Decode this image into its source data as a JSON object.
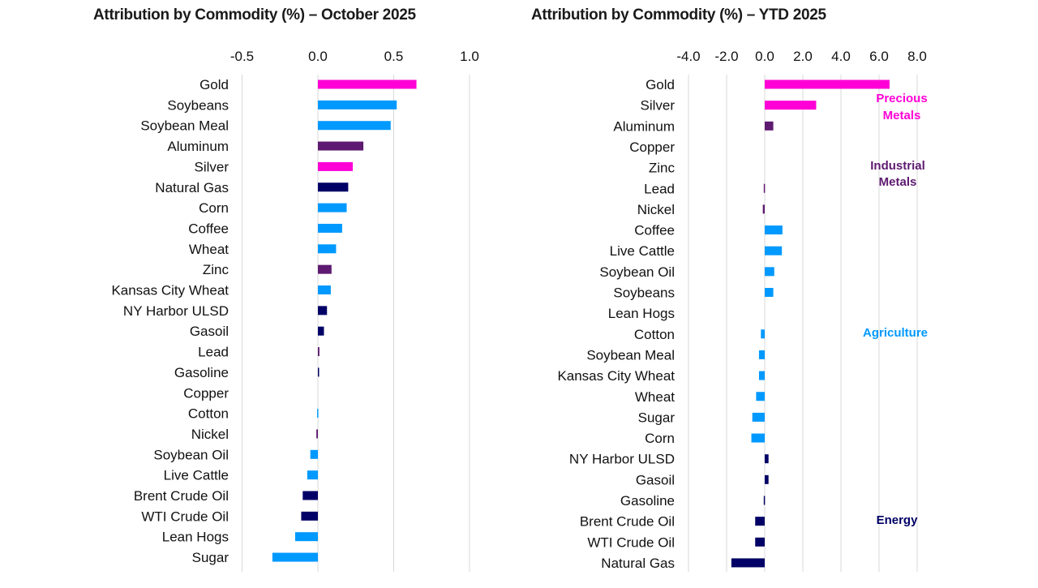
{
  "colors": {
    "Precious Metals": "#ff00d6",
    "Industrial Metals": "#5e1a70",
    "Agriculture": "#0099ff",
    "Energy": "#000066"
  },
  "chart_data": [
    {
      "type": "bar",
      "orientation": "horizontal",
      "title": "Attribution by Commodity (%) – October 2025",
      "xlim": [
        -0.5,
        1.0
      ],
      "ticks": [
        "-0.5",
        "0.0",
        "0.5",
        "1.0"
      ],
      "tick_values": [
        -0.5,
        0.0,
        0.5,
        1.0
      ],
      "grid": true,
      "categories": [
        "Gold",
        "Soybeans",
        "Soybean Meal",
        "Aluminum",
        "Silver",
        "Natural Gas",
        "Corn",
        "Coffee",
        "Wheat",
        "Zinc",
        "Kansas City Wheat",
        "NY Harbor ULSD",
        "Gasoil",
        "Lead",
        "Gasoline",
        "Copper",
        "Cotton",
        "Nickel",
        "Soybean Oil",
        "Live Cattle",
        "Brent Crude Oil",
        "WTI Crude Oil",
        "Lean Hogs",
        "Sugar"
      ],
      "values": [
        0.65,
        0.52,
        0.48,
        0.3,
        0.23,
        0.2,
        0.19,
        0.16,
        0.12,
        0.09,
        0.085,
        0.06,
        0.04,
        0.01,
        0.005,
        0.0,
        -0.005,
        -0.01,
        -0.05,
        -0.07,
        -0.1,
        -0.11,
        -0.15,
        -0.3
      ],
      "groups": [
        "Precious Metals",
        "Agriculture",
        "Agriculture",
        "Industrial Metals",
        "Precious Metals",
        "Energy",
        "Agriculture",
        "Agriculture",
        "Agriculture",
        "Industrial Metals",
        "Agriculture",
        "Energy",
        "Energy",
        "Industrial Metals",
        "Energy",
        "Industrial Metals",
        "Agriculture",
        "Industrial Metals",
        "Agriculture",
        "Agriculture",
        "Energy",
        "Energy",
        "Agriculture",
        "Agriculture"
      ]
    },
    {
      "type": "bar",
      "orientation": "horizontal",
      "title": "Attribution by Commodity (%) – YTD 2025",
      "xlim": [
        -4.0,
        8.0
      ],
      "ticks": [
        "-4.0",
        "-2.0",
        "0.0",
        "2.0",
        "4.0",
        "6.0",
        "8.0"
      ],
      "tick_values": [
        -4.0,
        -2.0,
        0.0,
        2.0,
        4.0,
        6.0,
        8.0
      ],
      "grid": true,
      "categories": [
        "Gold",
        "Silver",
        "Aluminum",
        "Copper",
        "Zinc",
        "Lead",
        "Nickel",
        "Coffee",
        "Live Cattle",
        "Soybean Oil",
        "Soybeans",
        "Lean Hogs",
        "Cotton",
        "Soybean Meal",
        "Kansas City Wheat",
        "Wheat",
        "Sugar",
        "Corn",
        "NY Harbor ULSD",
        "Gasoil",
        "Gasoline",
        "Brent Crude Oil",
        "WTI Crude Oil",
        "Natural Gas"
      ],
      "values": [
        6.55,
        2.7,
        0.45,
        0.0,
        0.0,
        -0.05,
        -0.1,
        0.93,
        0.9,
        0.5,
        0.45,
        0.0,
        -0.2,
        -0.3,
        -0.3,
        -0.45,
        -0.65,
        -0.7,
        0.2,
        0.2,
        -0.05,
        -0.5,
        -0.5,
        -1.75
      ],
      "groups": [
        "Precious Metals",
        "Precious Metals",
        "Industrial Metals",
        "Industrial Metals",
        "Industrial Metals",
        "Industrial Metals",
        "Industrial Metals",
        "Agriculture",
        "Agriculture",
        "Agriculture",
        "Agriculture",
        "Agriculture",
        "Agriculture",
        "Agriculture",
        "Agriculture",
        "Agriculture",
        "Agriculture",
        "Agriculture",
        "Energy",
        "Energy",
        "Energy",
        "Energy",
        "Energy",
        "Energy"
      ],
      "annotations": [
        {
          "text_lines": [
            "Precious",
            "Metals"
          ],
          "group": "Precious Metals"
        },
        {
          "text_lines": [
            "Industrial",
            "Metals"
          ],
          "group": "Industrial Metals"
        },
        {
          "text_lines": [
            "Agriculture"
          ],
          "group": "Agriculture"
        },
        {
          "text_lines": [
            "Energy"
          ],
          "group": "Energy"
        }
      ]
    }
  ]
}
